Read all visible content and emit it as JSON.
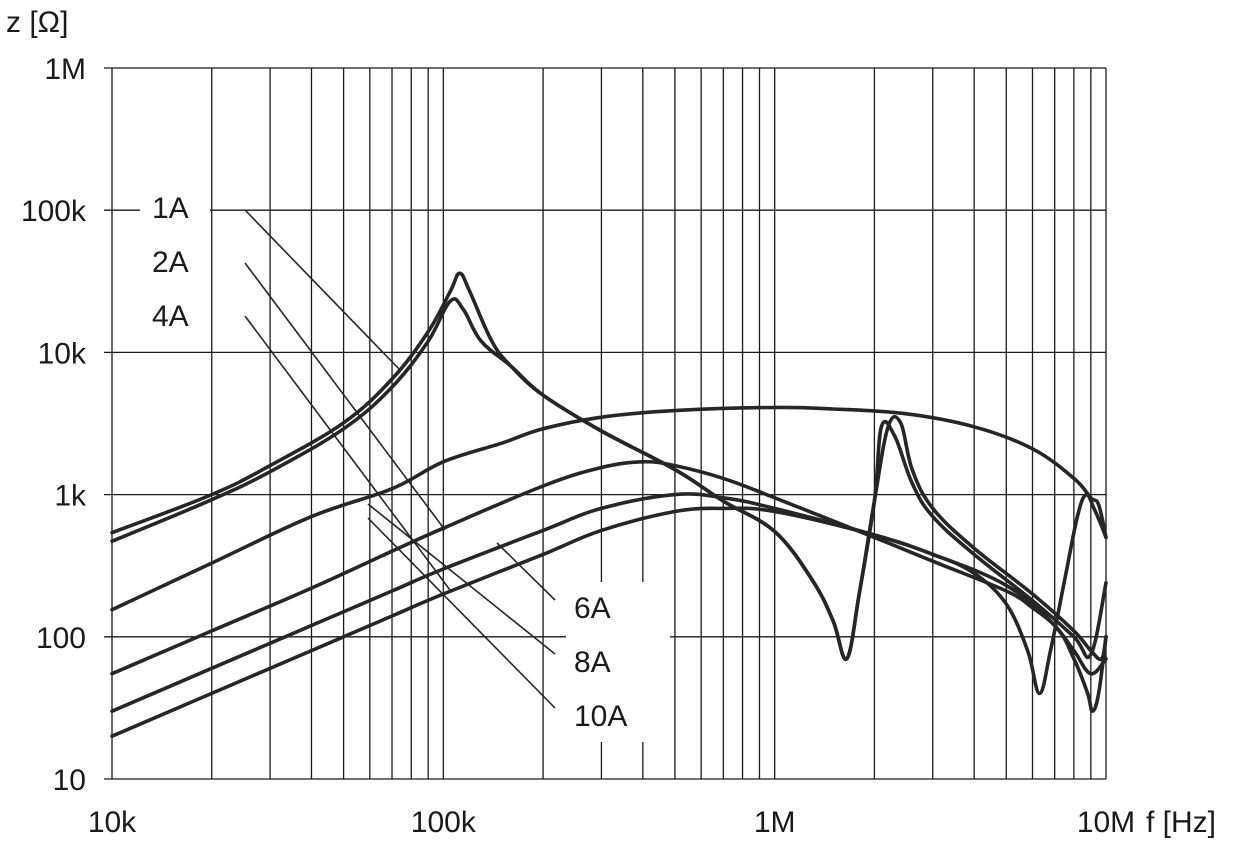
{
  "chart_data": {
    "type": "line",
    "xlabel": "f [Hz]",
    "ylabel": "z [Ω]",
    "x_scale": "log",
    "y_scale": "log",
    "xlim": [
      10000,
      10000000
    ],
    "ylim": [
      10,
      1000000
    ],
    "grid": true,
    "legend": "none",
    "x_ticks": [
      {
        "value": 10000,
        "label": "10k"
      },
      {
        "value": 100000,
        "label": "100k"
      },
      {
        "value": 1000000,
        "label": "1M"
      },
      {
        "value": 10000000,
        "label": "10M"
      }
    ],
    "y_ticks": [
      {
        "value": 10,
        "label": "10"
      },
      {
        "value": 100,
        "label": "100"
      },
      {
        "value": 1000,
        "label": "1k"
      },
      {
        "value": 10000,
        "label": "10k"
      },
      {
        "value": 100000,
        "label": "100k"
      },
      {
        "value": 1000000,
        "label": "1M"
      }
    ],
    "series": [
      {
        "name": "1A",
        "points": [
          [
            10000,
            540
          ],
          [
            20000,
            1000
          ],
          [
            30000,
            1600
          ],
          [
            50000,
            3200
          ],
          [
            70000,
            6500
          ],
          [
            90000,
            14000
          ],
          [
            105000,
            27000
          ],
          [
            112000,
            36000
          ],
          [
            120000,
            27000
          ],
          [
            140000,
            12000
          ],
          [
            160000,
            8000
          ],
          [
            200000,
            5000
          ],
          [
            300000,
            2800
          ],
          [
            500000,
            1500
          ],
          [
            700000,
            900
          ],
          [
            1000000,
            550
          ],
          [
            1300000,
            250
          ],
          [
            1500000,
            130
          ],
          [
            1650000,
            70
          ],
          [
            1800000,
            200
          ],
          [
            2000000,
            900
          ],
          [
            2200000,
            3000
          ],
          [
            2400000,
            3200
          ],
          [
            2600000,
            1500
          ],
          [
            3000000,
            800
          ],
          [
            4000000,
            420
          ],
          [
            6000000,
            200
          ],
          [
            8000000,
            110
          ],
          [
            9000000,
            80
          ],
          [
            9700000,
            70
          ],
          [
            10000000,
            100
          ]
        ]
      },
      {
        "name": "2A",
        "points": [
          [
            10000,
            470
          ],
          [
            20000,
            920
          ],
          [
            30000,
            1450
          ],
          [
            50000,
            2900
          ],
          [
            70000,
            5700
          ],
          [
            90000,
            12000
          ],
          [
            105000,
            23000
          ],
          [
            115000,
            20000
          ],
          [
            130000,
            12000
          ],
          [
            160000,
            8000
          ],
          [
            200000,
            5000
          ],
          [
            300000,
            2800
          ],
          [
            500000,
            1500
          ],
          [
            700000,
            900
          ],
          [
            1000000,
            550
          ],
          [
            1300000,
            250
          ],
          [
            1500000,
            130
          ],
          [
            1650000,
            70
          ],
          [
            1800000,
            200
          ],
          [
            2000000,
            900
          ],
          [
            2100000,
            3000
          ],
          [
            2300000,
            2600
          ],
          [
            2600000,
            1200
          ],
          [
            3000000,
            700
          ],
          [
            4000000,
            380
          ],
          [
            6000000,
            180
          ],
          [
            8000000,
            100
          ],
          [
            9000000,
            75
          ],
          [
            10000000,
            240
          ]
        ]
      },
      {
        "name": "4A",
        "points": [
          [
            10000,
            155
          ],
          [
            20000,
            330
          ],
          [
            40000,
            700
          ],
          [
            70000,
            1100
          ],
          [
            100000,
            1700
          ],
          [
            150000,
            2300
          ],
          [
            200000,
            2900
          ],
          [
            300000,
            3500
          ],
          [
            500000,
            3900
          ],
          [
            1000000,
            4100
          ],
          [
            1500000,
            4000
          ],
          [
            2500000,
            3700
          ],
          [
            4000000,
            3000
          ],
          [
            6000000,
            2100
          ],
          [
            8000000,
            1300
          ],
          [
            9000000,
            950
          ],
          [
            9500000,
            850
          ],
          [
            10000000,
            500
          ]
        ]
      },
      {
        "name": "6A",
        "points": [
          [
            10000,
            55
          ],
          [
            20000,
            110
          ],
          [
            40000,
            220
          ],
          [
            70000,
            400
          ],
          [
            100000,
            580
          ],
          [
            200000,
            1150
          ],
          [
            300000,
            1550
          ],
          [
            400000,
            1700
          ],
          [
            500000,
            1600
          ],
          [
            700000,
            1300
          ],
          [
            1000000,
            950
          ],
          [
            2000000,
            500
          ],
          [
            3000000,
            340
          ],
          [
            5000000,
            210
          ],
          [
            6000000,
            160
          ],
          [
            7000000,
            120
          ],
          [
            8000000,
            80
          ],
          [
            9000000,
            55
          ],
          [
            10000000,
            70
          ]
        ]
      },
      {
        "name": "8A",
        "points": [
          [
            10000,
            30
          ],
          [
            20000,
            60
          ],
          [
            40000,
            120
          ],
          [
            70000,
            210
          ],
          [
            100000,
            300
          ],
          [
            200000,
            560
          ],
          [
            300000,
            800
          ],
          [
            500000,
            1000
          ],
          [
            700000,
            950
          ],
          [
            1000000,
            800
          ],
          [
            2000000,
            520
          ],
          [
            3000000,
            380
          ],
          [
            4000000,
            280
          ],
          [
            5000000,
            170
          ],
          [
            5800000,
            80
          ],
          [
            6300000,
            40
          ],
          [
            6800000,
            80
          ],
          [
            7500000,
            250
          ],
          [
            8200000,
            700
          ],
          [
            8700000,
            1000
          ],
          [
            9200000,
            800
          ],
          [
            9700000,
            600
          ],
          [
            10000000,
            500
          ]
        ]
      },
      {
        "name": "10A",
        "points": [
          [
            10000,
            20
          ],
          [
            20000,
            40
          ],
          [
            40000,
            80
          ],
          [
            70000,
            140
          ],
          [
            100000,
            200
          ],
          [
            200000,
            380
          ],
          [
            300000,
            560
          ],
          [
            500000,
            760
          ],
          [
            700000,
            800
          ],
          [
            1000000,
            760
          ],
          [
            2000000,
            520
          ],
          [
            3000000,
            380
          ],
          [
            5000000,
            230
          ],
          [
            7000000,
            120
          ],
          [
            8000000,
            70
          ],
          [
            8800000,
            40
          ],
          [
            9100000,
            30
          ],
          [
            9500000,
            40
          ],
          [
            10000000,
            100
          ]
        ]
      }
    ]
  },
  "labels": {
    "series_left": [
      "1A",
      "2A",
      "4A"
    ],
    "series_right": [
      "6A",
      "8A",
      "10A"
    ]
  },
  "colors": {
    "curve": "#262626",
    "grid": "#1a1a1a",
    "background": "#ffffff"
  }
}
